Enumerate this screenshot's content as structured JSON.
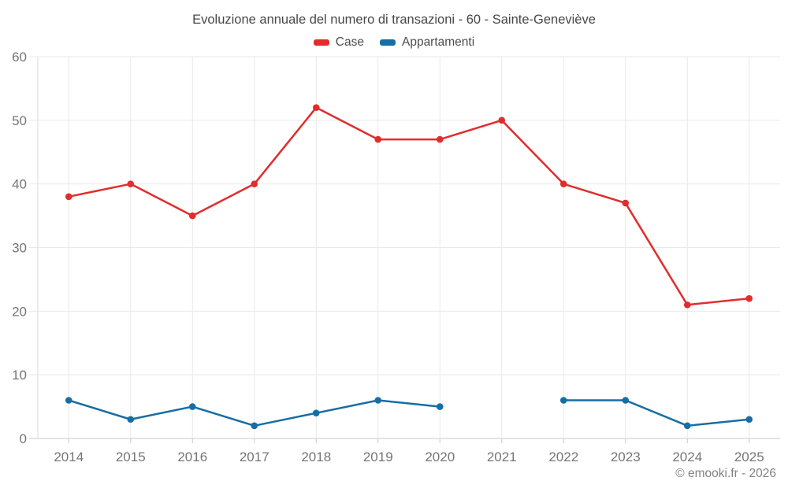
{
  "header": {
    "title": "Evoluzione annuale del numero di transazioni - 60 - Sainte-Geneviève"
  },
  "footer": {
    "credit": "© emooki.fr - 2026"
  },
  "colors": {
    "case_red": "#e12d2d",
    "appartamenti_blue": "#166ea4",
    "axis_label_gray": "#757575",
    "gridline_gray": "#e9e9e9",
    "axis_line_gray": "#c9c9c9"
  },
  "chart_data": {
    "type": "line",
    "title": "Evoluzione annuale del numero di transazioni - 60 - Sainte-Geneviève",
    "categories": [
      "2014",
      "2015",
      "2016",
      "2017",
      "2018",
      "2019",
      "2020",
      "2021",
      "2022",
      "2023",
      "2024",
      "2025"
    ],
    "series": [
      {
        "name": "Case",
        "color": "#e12d2d",
        "values": [
          38,
          40,
          35,
          40,
          52,
          47,
          47,
          50,
          40,
          37,
          21,
          22
        ]
      },
      {
        "name": "Appartamenti",
        "color": "#166ea4",
        "values": [
          6,
          3,
          5,
          2,
          4,
          6,
          5,
          null,
          6,
          6,
          2,
          3
        ]
      }
    ],
    "xlabel": "",
    "ylabel": "",
    "ylim": [
      0,
      60
    ],
    "yticks": [
      0,
      10,
      20,
      30,
      40,
      50,
      60
    ],
    "grid": true,
    "legend_position": "top",
    "marker": "circle",
    "note_gap": "Appartamenti has no data point for 2021 (line gap)"
  }
}
